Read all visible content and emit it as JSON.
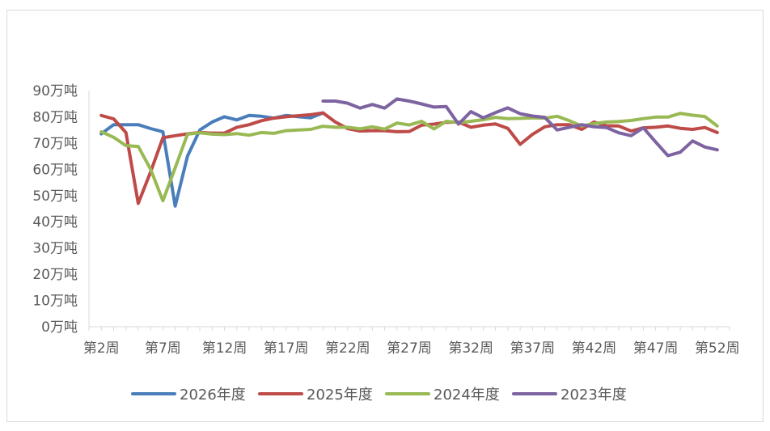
{
  "chart_data": {
    "type": "line",
    "title": "",
    "xlabel": "",
    "ylabel": "",
    "ylim": [
      0,
      90
    ],
    "y_ticks": [
      0,
      10,
      20,
      30,
      40,
      50,
      60,
      70,
      80,
      90
    ],
    "y_tick_labels": [
      "0万吨",
      "10万吨",
      "20万吨",
      "30万吨",
      "40万吨",
      "50万吨",
      "60万吨",
      "70万吨",
      "80万吨",
      "90万吨"
    ],
    "x_weeks": [
      2,
      7,
      12,
      17,
      22,
      27,
      32,
      37,
      42,
      47,
      52
    ],
    "x_tick_labels": [
      "第2周",
      "第7周",
      "第12周",
      "第17周",
      "第22周",
      "第27周",
      "第32周",
      "第37周",
      "第42周",
      "第47周",
      "第52周"
    ],
    "grid": false,
    "legend_position": "bottom",
    "series": [
      {
        "name": "2026年度",
        "color": "#4a7ebb",
        "x": [
          2,
          3,
          4,
          5,
          6,
          7,
          8,
          9,
          10,
          11,
          12,
          13,
          14,
          15,
          16,
          17,
          18,
          19,
          20
        ],
        "values": [
          73.5,
          77,
          77,
          77,
          75.5,
          74.3,
          46,
          65,
          75,
          78,
          80,
          78.8,
          80.5,
          80.2,
          79.5,
          80.5,
          80,
          79.6,
          81.5
        ]
      },
      {
        "name": "2025年度",
        "color": "#be4b48",
        "x": [
          2,
          3,
          4,
          5,
          6,
          7,
          8,
          9,
          10,
          11,
          12,
          13,
          14,
          15,
          16,
          17,
          18,
          19,
          20,
          21,
          22,
          23,
          24,
          25,
          26,
          27,
          28,
          29,
          30,
          31,
          32,
          33,
          34,
          35,
          36,
          37,
          38,
          39,
          40,
          41,
          42,
          43,
          44,
          45,
          46,
          47,
          48,
          49,
          50,
          51,
          52
        ],
        "values": [
          80.5,
          79.2,
          74,
          47,
          59,
          72,
          72.8,
          73.5,
          74,
          73.8,
          73.8,
          76,
          77,
          78.5,
          79.5,
          80,
          80.4,
          80.8,
          81.5,
          78,
          75.5,
          74.6,
          74.7,
          74.7,
          74.3,
          74.4,
          76.8,
          77.2,
          77.9,
          78,
          76,
          76.8,
          77.3,
          75.6,
          69.5,
          73.3,
          76.2,
          77,
          77,
          75.2,
          78,
          76.6,
          76.5,
          74.6,
          75.8,
          76,
          76.5,
          75.6,
          75.2,
          75.9,
          74
        ]
      },
      {
        "name": "2024年度",
        "color": "#98b954",
        "x": [
          2,
          3,
          4,
          5,
          6,
          7,
          8,
          9,
          10,
          11,
          12,
          13,
          14,
          15,
          16,
          17,
          18,
          19,
          20,
          21,
          22,
          23,
          24,
          25,
          26,
          27,
          28,
          29,
          30,
          31,
          32,
          33,
          34,
          35,
          36,
          37,
          38,
          39,
          40,
          41,
          42,
          43,
          44,
          45,
          46,
          47,
          48,
          49,
          50,
          51,
          52
        ],
        "values": [
          74.3,
          72.2,
          69,
          68.7,
          60,
          48,
          60.6,
          73.4,
          73.9,
          73.4,
          73.2,
          73.6,
          73,
          74,
          73.7,
          74.7,
          75,
          75.2,
          76.4,
          76,
          76,
          75.4,
          76.2,
          75.3,
          77.6,
          76.9,
          78.3,
          75.4,
          78.3,
          77.8,
          78.3,
          78.9,
          79.8,
          79.3,
          79.4,
          79.6,
          79.5,
          80.2,
          78.5,
          76.5,
          77.4,
          78,
          78.2,
          78.6,
          79.3,
          79.9,
          79.9,
          81.3,
          80.6,
          80.1,
          76.5
        ]
      },
      {
        "name": "2023年度",
        "color": "#7e63a1",
        "x": [
          20,
          21,
          22,
          23,
          24,
          25,
          26,
          27,
          28,
          29,
          30,
          31,
          32,
          33,
          34,
          35,
          36,
          37,
          38,
          39,
          40,
          41,
          42,
          43,
          44,
          45,
          46,
          47,
          48,
          49,
          50,
          51,
          52
        ],
        "values": [
          86,
          86,
          85.2,
          83.3,
          84.7,
          83.3,
          86.8,
          86,
          84.9,
          83.7,
          83.9,
          77.2,
          82,
          79.6,
          81.6,
          83.4,
          81.2,
          80.3,
          79.8,
          75,
          76,
          77,
          76.2,
          75.9,
          73.9,
          72.8,
          75.8,
          70.4,
          65.2,
          66.5,
          70.8,
          68.5,
          67.4
        ]
      }
    ]
  }
}
